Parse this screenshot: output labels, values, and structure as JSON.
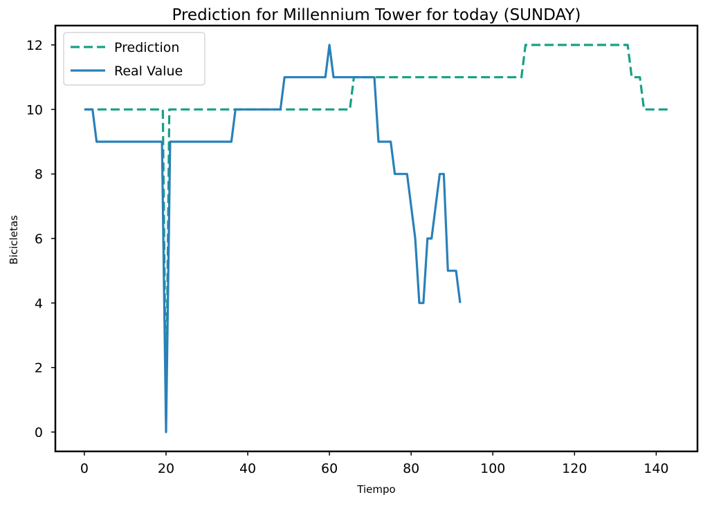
{
  "chart_data": {
    "type": "line",
    "title": "Prediction for Millennium Tower for today (SUNDAY)",
    "xlabel": "Tiempo",
    "ylabel": "Bicicletas",
    "xlim": [
      -7.1,
      150.1
    ],
    "ylim": [
      -0.6,
      12.6
    ],
    "x_ticks": [
      0,
      20,
      40,
      60,
      80,
      100,
      120,
      140
    ],
    "y_ticks": [
      0,
      2,
      4,
      6,
      8,
      10,
      12
    ],
    "grid": false,
    "legend_position": "top-left",
    "series": [
      {
        "name": "Prediction",
        "color": "#16a085",
        "style": "dashed",
        "points": [
          [
            0,
            10
          ],
          [
            19,
            10
          ],
          [
            19.2,
            10
          ],
          [
            20,
            0.4
          ],
          [
            20.8,
            10
          ],
          [
            21,
            10
          ],
          [
            65,
            10
          ],
          [
            66,
            11
          ],
          [
            107,
            11
          ],
          [
            108,
            12
          ],
          [
            133,
            12
          ],
          [
            134,
            11
          ],
          [
            136,
            11
          ],
          [
            137,
            10
          ],
          [
            143,
            10
          ]
        ]
      },
      {
        "name": "Real Value",
        "color": "#2980b9",
        "style": "solid",
        "points": [
          [
            0,
            10
          ],
          [
            2,
            10
          ],
          [
            3,
            9
          ],
          [
            19,
            9
          ],
          [
            20,
            0
          ],
          [
            21,
            9
          ],
          [
            36,
            9
          ],
          [
            37,
            10
          ],
          [
            48,
            10
          ],
          [
            49,
            11
          ],
          [
            59,
            11
          ],
          [
            60,
            12
          ],
          [
            61,
            11
          ],
          [
            71,
            11
          ],
          [
            72,
            9
          ],
          [
            75,
            9
          ],
          [
            76,
            8
          ],
          [
            79,
            8
          ],
          [
            81,
            6
          ],
          [
            82,
            4
          ],
          [
            83,
            4
          ],
          [
            84,
            6
          ],
          [
            85,
            6
          ],
          [
            87,
            8
          ],
          [
            88,
            8
          ],
          [
            89,
            5
          ],
          [
            91,
            5
          ],
          [
            92,
            4
          ]
        ]
      }
    ]
  }
}
